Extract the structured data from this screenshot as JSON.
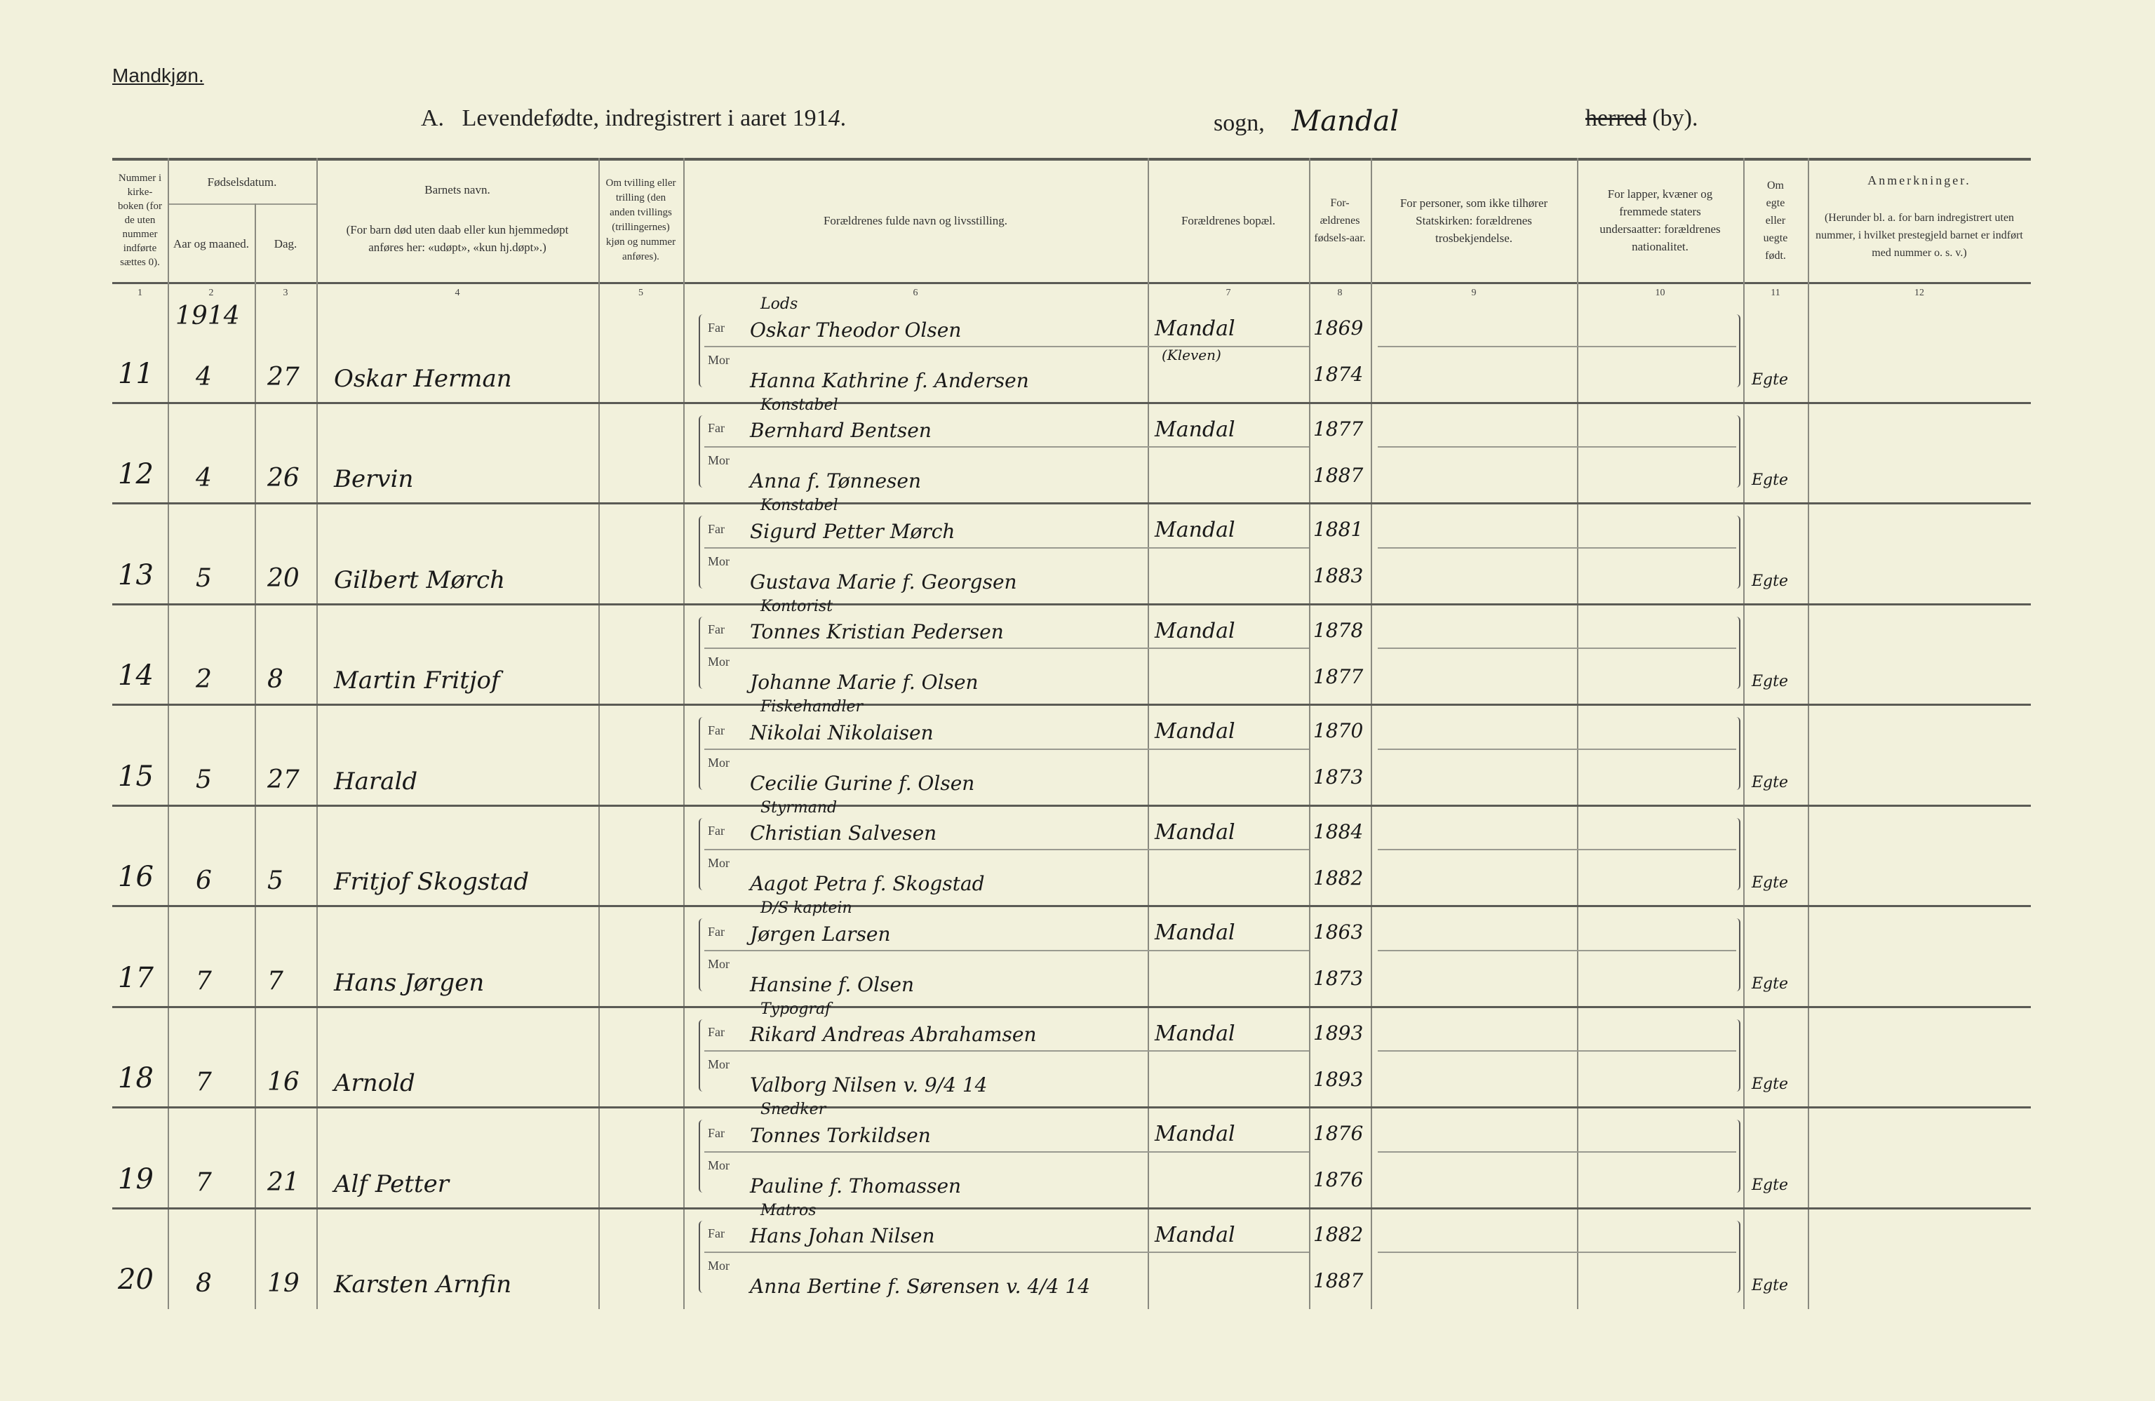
{
  "page": {
    "section_label": "Mandkjøn.",
    "title_prefix": "A.",
    "title": "Levendefødte, indregistrert i aaret 191",
    "title_year_suffix": "4",
    "title_period": ".",
    "sogn_label": "sogn,",
    "sogn_value": "Mandal",
    "herred_label": "herred",
    "by_label": "(by)."
  },
  "headers": {
    "c1": "Nummer i kirke-boken (for de uten nummer indførte sættes 0).",
    "c2_group": "Fødselsdatum.",
    "c2": "Aar og maaned.",
    "c3": "Dag.",
    "c4_title": "Barnets navn.",
    "c4_note": "(For barn død uten daab eller kun hjemmedøpt anføres her: «udøpt», «kun hj.døpt».)",
    "c5": "Om tvilling eller trilling (den anden tvillings (trillingernes) kjøn og nummer anføres).",
    "c6": "Forældrenes fulde navn og livsstilling.",
    "c7": "Forældrenes bopæl.",
    "c8": "For-ældrenes fødsels-aar.",
    "c9": "For personer, som ikke tilhører Statskirken: forældrenes trosbekjendelse.",
    "c10": "For lapper, kvæner og fremmede staters undersaatter: forældrenes nationalitet.",
    "c11": "Om egte eller uegte født.",
    "c12_title": "Anmerkninger.",
    "c12_note": "(Herunder bl. a. for barn indregistrert uten nummer, i hvilket prestegjeld barnet er indført med nummer o. s. v.)",
    "numbers": [
      "1",
      "2",
      "3",
      "4",
      "5",
      "6",
      "7",
      "8",
      "9",
      "10",
      "11",
      "12"
    ],
    "far_label": "Far",
    "mor_label": "Mor"
  },
  "year_entry": "1914",
  "rows": [
    {
      "nr": "11",
      "month": "4",
      "day": "27",
      "name": "Oskar Herman",
      "occupation": "Lods",
      "far": "Oskar Theodor Olsen",
      "mor": "Hanna Kathrine f. Andersen",
      "residence": "Mandal",
      "residence_note": "(Kleven)",
      "far_year": "1869",
      "mor_year": "1874",
      "legit": "Egte"
    },
    {
      "nr": "12",
      "month": "4",
      "day": "26",
      "name": "Bervin",
      "occupation": "Konstabel",
      "far": "Bernhard Bentsen",
      "mor": "Anna f. Tønnesen",
      "residence": "Mandal",
      "residence_note": "",
      "far_year": "1877",
      "mor_year": "1887",
      "legit": "Egte"
    },
    {
      "nr": "13",
      "month": "5",
      "day": "20",
      "name": "Gilbert Mørch",
      "occupation": "Konstabel",
      "far": "Sigurd Petter Mørch",
      "mor": "Gustava Marie f. Georgsen",
      "residence": "Mandal",
      "residence_note": "",
      "far_year": "1881",
      "mor_year": "1883",
      "legit": "Egte"
    },
    {
      "nr": "14",
      "month": "2",
      "day": "8",
      "name": "Martin Fritjof",
      "occupation": "Kontorist",
      "far": "Tonnes Kristian Pedersen",
      "mor": "Johanne Marie f. Olsen",
      "residence": "Mandal",
      "residence_note": "",
      "far_year": "1878",
      "mor_year": "1877",
      "legit": "Egte"
    },
    {
      "nr": "15",
      "month": "5",
      "day": "27",
      "name": "Harald",
      "occupation": "Fiskehandler",
      "far": "Nikolai Nikolaisen",
      "mor": "Cecilie Gurine f. Olsen",
      "residence": "Mandal",
      "residence_note": "",
      "far_year": "1870",
      "mor_year": "1873",
      "legit": "Egte"
    },
    {
      "nr": "16",
      "month": "6",
      "day": "5",
      "name": "Fritjof Skogstad",
      "occupation": "Styrmand",
      "far": "Christian Salvesen",
      "mor": "Aagot Petra f. Skogstad",
      "residence": "Mandal",
      "residence_note": "",
      "far_year": "1884",
      "mor_year": "1882",
      "legit": "Egte"
    },
    {
      "nr": "17",
      "month": "7",
      "day": "7",
      "name": "Hans Jørgen",
      "occupation": "D/S kaptein",
      "far": "Jørgen Larsen",
      "mor": "Hansine f. Olsen",
      "residence": "Mandal",
      "residence_note": "",
      "far_year": "1863",
      "mor_year": "1873",
      "legit": "Egte"
    },
    {
      "nr": "18",
      "month": "7",
      "day": "16",
      "name": "Arnold",
      "occupation": "Typograf",
      "far": "Rikard Andreas Abrahamsen",
      "mor": "Valborg Nilsen v. 9/4 14",
      "residence": "Mandal",
      "residence_note": "",
      "far_year": "1893",
      "mor_year": "1893",
      "legit": "Egte"
    },
    {
      "nr": "19",
      "month": "7",
      "day": "21",
      "name": "Alf Petter",
      "occupation": "Snedker",
      "far": "Tonnes Torkildsen",
      "mor": "Pauline f. Thomassen",
      "residence": "Mandal",
      "residence_note": "",
      "far_year": "1876",
      "mor_year": "1876",
      "legit": "Egte"
    },
    {
      "nr": "20",
      "month": "8",
      "day": "19",
      "name": "Karsten Arnfin",
      "occupation": "Matros",
      "far": "Hans Johan Nilsen",
      "mor": "Anna Bertine f. Sørensen v. 4/4 14",
      "residence": "Mandal",
      "residence_note": "",
      "far_year": "1882",
      "mor_year": "1887",
      "legit": "Egte"
    }
  ]
}
